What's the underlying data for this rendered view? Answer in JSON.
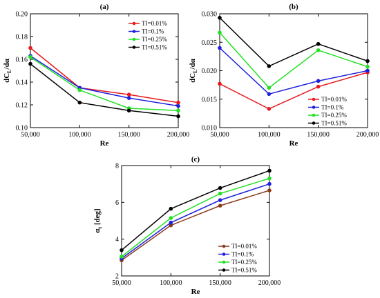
{
  "chart_data": [
    {
      "type": "line",
      "title": "(a)",
      "xlabel": "Re",
      "ylabel": "dC_L/dα",
      "ylabel_main": "dC",
      "ylabel_sub": "L",
      "ylabel_tail": "/dα",
      "x": [
        50000,
        100000,
        150000,
        200000
      ],
      "x_tick_labels": [
        "50,000",
        "100,000",
        "150,000",
        "200,000"
      ],
      "xlim": [
        50000,
        200000
      ],
      "ylim": [
        0.1,
        0.2
      ],
      "y_ticks": [
        0.1,
        0.12,
        0.14,
        0.16,
        0.18,
        0.2
      ],
      "y_tick_labels": [
        "0.10",
        "0.12",
        "0.14",
        "0.16",
        "0.18",
        "0.20"
      ],
      "grid": false,
      "legend_position": "top-right",
      "series": [
        {
          "name": "TI=0.01%",
          "color": "#e8191c",
          "values": [
            0.17,
            0.135,
            0.129,
            0.122
          ]
        },
        {
          "name": "TI=0.1%",
          "color": "#1f1fe0",
          "values": [
            0.163,
            0.135,
            0.126,
            0.119
          ]
        },
        {
          "name": "TI=0.25%",
          "color": "#22e022",
          "values": [
            0.162,
            0.133,
            0.117,
            0.115
          ]
        },
        {
          "name": "TI=0.51%",
          "color": "#000000",
          "values": [
            0.156,
            0.122,
            0.115,
            0.11
          ]
        }
      ]
    },
    {
      "type": "line",
      "title": "(b)",
      "xlabel": "Re",
      "ylabel": "dC_L/dα",
      "ylabel_main": "dC",
      "ylabel_sub": "L",
      "ylabel_tail": "/dα",
      "x": [
        50000,
        100000,
        150000,
        200000
      ],
      "x_tick_labels": [
        "50,000",
        "100,000",
        "150,000",
        "200,000"
      ],
      "xlim": [
        50000,
        200000
      ],
      "ylim": [
        0.01,
        0.03
      ],
      "y_ticks": [
        0.01,
        0.015,
        0.02,
        0.025,
        0.03
      ],
      "y_tick_labels": [
        "0.010",
        "0.015",
        "0.020",
        "0.025",
        "0.030"
      ],
      "grid": false,
      "legend_position": "bottom-right",
      "series": [
        {
          "name": "TI=0.01%",
          "color": "#e8191c",
          "values": [
            0.0177,
            0.0133,
            0.0172,
            0.0197
          ]
        },
        {
          "name": "TI=0.1%",
          "color": "#1f1fe0",
          "values": [
            0.024,
            0.0159,
            0.0182,
            0.02
          ]
        },
        {
          "name": "TI=0.25%",
          "color": "#22e022",
          "values": [
            0.0267,
            0.017,
            0.0236,
            0.0207
          ]
        },
        {
          "name": "TI=0.51%",
          "color": "#000000",
          "values": [
            0.0293,
            0.0208,
            0.0247,
            0.0217
          ]
        }
      ]
    },
    {
      "type": "line",
      "title": "(c)",
      "xlabel": "Re",
      "ylabel": "α_t [deg]",
      "ylabel_main": "α",
      "ylabel_sub": "t",
      "ylabel_tail": " [deg]",
      "x": [
        50000,
        100000,
        150000,
        200000
      ],
      "x_tick_labels": [
        "50,000",
        "100,000",
        "150,000",
        "200,000"
      ],
      "xlim": [
        50000,
        200000
      ],
      "ylim": [
        2,
        8
      ],
      "y_ticks": [
        2,
        4,
        6,
        8
      ],
      "y_tick_labels": [
        "2",
        "4",
        "6",
        "8"
      ],
      "grid": false,
      "legend_position": "bottom-right",
      "series": [
        {
          "name": "TI=0.01%",
          "color": "#8b3a1a",
          "values": [
            2.85,
            4.75,
            5.82,
            6.65
          ]
        },
        {
          "name": "TI=0.1%",
          "color": "#1f1fe0",
          "values": [
            2.95,
            4.9,
            6.12,
            7.0
          ]
        },
        {
          "name": "TI=0.25%",
          "color": "#22e022",
          "values": [
            3.05,
            5.15,
            6.48,
            7.3
          ]
        },
        {
          "name": "TI=0.51%",
          "color": "#000000",
          "values": [
            3.4,
            5.65,
            6.78,
            7.72
          ]
        }
      ]
    }
  ]
}
